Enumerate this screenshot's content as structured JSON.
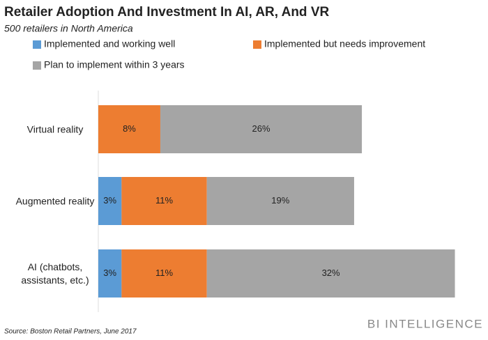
{
  "chart_data": {
    "type": "stacked-bar-horizontal",
    "title": "Retailer Adoption And Investment In AI, AR, And VR",
    "subtitle": "500 retailers in North America",
    "source": "Source: Boston Retail Partners, June 2017",
    "brand": "BI INTELLIGENCE",
    "categories": [
      "Virtual reality",
      "Augmented reality",
      "AI (chatbots, assistants, etc.)"
    ],
    "xlim": [
      0,
      50
    ],
    "series": [
      {
        "name": "Implemented and working well",
        "color": "#5b9bd5",
        "values": [
          null,
          3,
          3
        ],
        "value_labels": [
          null,
          "3%",
          "3%"
        ]
      },
      {
        "name": "Implemented but needs improvement",
        "color": "#ed7d31",
        "values": [
          8,
          11,
          11
        ],
        "value_labels": [
          "8%",
          "11%",
          "11%"
        ]
      },
      {
        "name": "Plan to implement within 3 years",
        "color": "#a5a5a5",
        "values": [
          26,
          19,
          32
        ],
        "value_labels": [
          "26%",
          "19%",
          "32%"
        ]
      }
    ]
  }
}
